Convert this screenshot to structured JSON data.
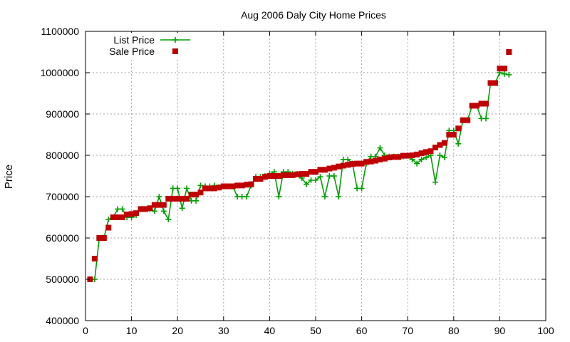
{
  "chart_data": {
    "type": "line",
    "title": "Aug 2006 Daly City Home Prices",
    "xlabel": "",
    "ylabel": "Price",
    "xlim": [
      0,
      100
    ],
    "ylim": [
      400000,
      1100000
    ],
    "x_ticks": [
      0,
      10,
      20,
      30,
      40,
      50,
      60,
      70,
      80,
      90,
      100
    ],
    "y_ticks": [
      400000,
      500000,
      600000,
      700000,
      800000,
      900000,
      1000000,
      1100000
    ],
    "grid": true,
    "legend_position": "top-left",
    "series": [
      {
        "name": "List Price",
        "style": "line+crosses",
        "color": "#00a000",
        "points": [
          [
            1,
            500000
          ],
          [
            2,
            500000
          ],
          [
            3,
            600000
          ],
          [
            4,
            600000
          ],
          [
            5,
            645000
          ],
          [
            6,
            650000
          ],
          [
            7,
            670000
          ],
          [
            8,
            670000
          ],
          [
            9,
            650000
          ],
          [
            10,
            650000
          ],
          [
            11,
            655000
          ],
          [
            12,
            670000
          ],
          [
            13,
            670000
          ],
          [
            14,
            670000
          ],
          [
            15,
            665000
          ],
          [
            16,
            700000
          ],
          [
            17,
            665000
          ],
          [
            18,
            645000
          ],
          [
            19,
            720000
          ],
          [
            20,
            720000
          ],
          [
            21,
            672000
          ],
          [
            22,
            720000
          ],
          [
            23,
            690000
          ],
          [
            24,
            690000
          ],
          [
            25,
            727000
          ],
          [
            26,
            725000
          ],
          [
            27,
            725000
          ],
          [
            28,
            727000
          ],
          [
            29,
            723000
          ],
          [
            30,
            725000
          ],
          [
            31,
            725000
          ],
          [
            32,
            725000
          ],
          [
            33,
            700000
          ],
          [
            34,
            700000
          ],
          [
            35,
            700000
          ],
          [
            36,
            727000
          ],
          [
            37,
            748000
          ],
          [
            38,
            748000
          ],
          [
            39,
            750000
          ],
          [
            40,
            755000
          ],
          [
            41,
            760000
          ],
          [
            42,
            700000
          ],
          [
            43,
            760000
          ],
          [
            44,
            760000
          ],
          [
            45,
            755000
          ],
          [
            46,
            755000
          ],
          [
            47,
            745000
          ],
          [
            48,
            730000
          ],
          [
            49,
            740000
          ],
          [
            50,
            740000
          ],
          [
            51,
            748000
          ],
          [
            52,
            700000
          ],
          [
            53,
            750000
          ],
          [
            54,
            750000
          ],
          [
            55,
            700000
          ],
          [
            56,
            790000
          ],
          [
            57,
            790000
          ],
          [
            58,
            780000
          ],
          [
            59,
            720000
          ],
          [
            60,
            720000
          ],
          [
            61,
            780000
          ],
          [
            62,
            797000
          ],
          [
            63,
            797000
          ],
          [
            64,
            818000
          ],
          [
            65,
            800000
          ],
          [
            66,
            797000
          ],
          [
            67,
            797000
          ],
          [
            68,
            797000
          ],
          [
            69,
            797000
          ],
          [
            70,
            800000
          ],
          [
            71,
            790000
          ],
          [
            72,
            780000
          ],
          [
            73,
            790000
          ],
          [
            74,
            795000
          ],
          [
            75,
            800000
          ],
          [
            76,
            735000
          ],
          [
            77,
            800000
          ],
          [
            78,
            795000
          ],
          [
            79,
            860000
          ],
          [
            80,
            860000
          ],
          [
            81,
            828000
          ],
          [
            82,
            885000
          ],
          [
            83,
            885000
          ],
          [
            84,
            920000
          ],
          [
            85,
            920000
          ],
          [
            86,
            889000
          ],
          [
            87,
            889000
          ],
          [
            88,
            975000
          ],
          [
            89,
            975000
          ],
          [
            90,
            1000000
          ],
          [
            91,
            997000
          ],
          [
            92,
            995000
          ]
        ]
      },
      {
        "name": "Sale Price",
        "style": "squares",
        "color": "#c00000",
        "points": [
          [
            1,
            500000
          ],
          [
            2,
            550000
          ],
          [
            3,
            600000
          ],
          [
            4,
            600000
          ],
          [
            5,
            625000
          ],
          [
            6,
            650000
          ],
          [
            7,
            650000
          ],
          [
            8,
            650000
          ],
          [
            9,
            657000
          ],
          [
            10,
            658000
          ],
          [
            11,
            660000
          ],
          [
            12,
            670000
          ],
          [
            13,
            670000
          ],
          [
            14,
            672000
          ],
          [
            15,
            680000
          ],
          [
            16,
            680000
          ],
          [
            17,
            680000
          ],
          [
            18,
            695000
          ],
          [
            19,
            695000
          ],
          [
            20,
            695000
          ],
          [
            21,
            695000
          ],
          [
            22,
            695000
          ],
          [
            23,
            705000
          ],
          [
            24,
            705000
          ],
          [
            25,
            710000
          ],
          [
            26,
            720000
          ],
          [
            27,
            720000
          ],
          [
            28,
            720000
          ],
          [
            29,
            722000
          ],
          [
            30,
            725000
          ],
          [
            31,
            725000
          ],
          [
            32,
            725000
          ],
          [
            33,
            727000
          ],
          [
            34,
            727000
          ],
          [
            35,
            729000
          ],
          [
            36,
            730000
          ],
          [
            37,
            743000
          ],
          [
            38,
            743000
          ],
          [
            39,
            748000
          ],
          [
            40,
            750000
          ],
          [
            41,
            750000
          ],
          [
            42,
            750000
          ],
          [
            43,
            752000
          ],
          [
            44,
            752000
          ],
          [
            45,
            752000
          ],
          [
            46,
            754000
          ],
          [
            47,
            755000
          ],
          [
            48,
            755000
          ],
          [
            49,
            760000
          ],
          [
            50,
            760000
          ],
          [
            51,
            765000
          ],
          [
            52,
            765000
          ],
          [
            53,
            768000
          ],
          [
            54,
            770000
          ],
          [
            55,
            773000
          ],
          [
            56,
            775000
          ],
          [
            57,
            777000
          ],
          [
            58,
            779000
          ],
          [
            59,
            780000
          ],
          [
            60,
            780000
          ],
          [
            61,
            784000
          ],
          [
            62,
            785000
          ],
          [
            63,
            787000
          ],
          [
            64,
            790000
          ],
          [
            65,
            792000
          ],
          [
            66,
            795000
          ],
          [
            67,
            796000
          ],
          [
            68,
            796000
          ],
          [
            69,
            799000
          ],
          [
            70,
            799000
          ],
          [
            71,
            800000
          ],
          [
            72,
            802000
          ],
          [
            73,
            805000
          ],
          [
            74,
            808000
          ],
          [
            75,
            810000
          ],
          [
            76,
            819000
          ],
          [
            77,
            825000
          ],
          [
            78,
            830000
          ],
          [
            79,
            850000
          ],
          [
            80,
            850000
          ],
          [
            81,
            865000
          ],
          [
            82,
            885000
          ],
          [
            83,
            885000
          ],
          [
            84,
            920000
          ],
          [
            85,
            920000
          ],
          [
            86,
            925000
          ],
          [
            87,
            925000
          ],
          [
            88,
            975000
          ],
          [
            89,
            975000
          ],
          [
            90,
            1010000
          ],
          [
            91,
            1010000
          ],
          [
            92,
            1050000
          ]
        ]
      }
    ]
  }
}
